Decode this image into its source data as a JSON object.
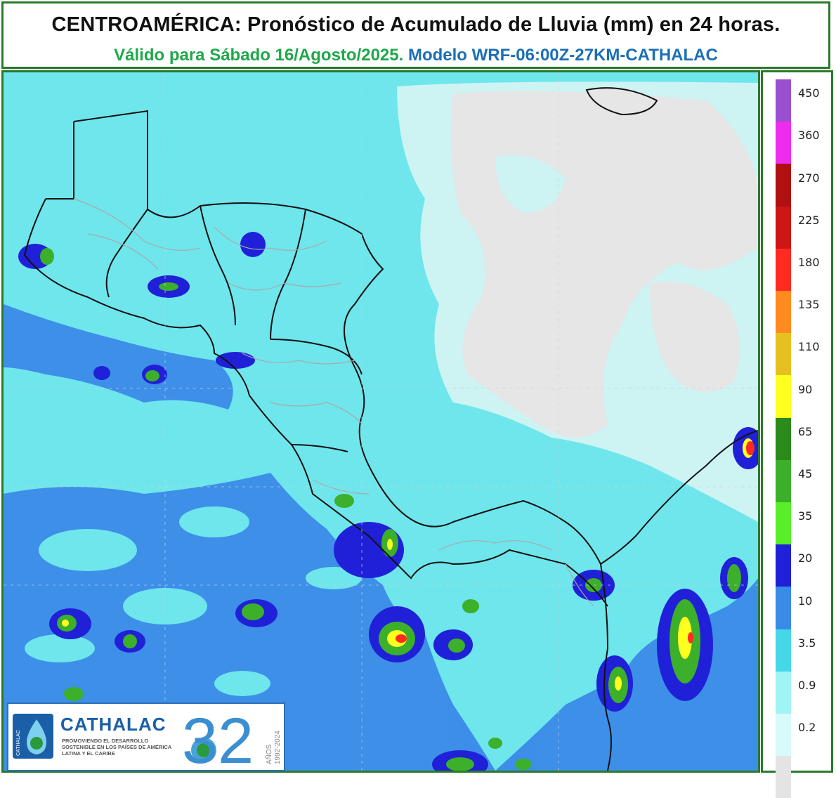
{
  "header": {
    "title": "CENTROAMÉRICA: Pronóstico de Acumulado de Lluvia (mm) en 24 horas.",
    "validity": "Válido para Sábado 16/Agosto/2025.",
    "model": "Modelo WRF-06:00Z-27KM-CATHALAC"
  },
  "legend": {
    "ticks": [
      "450",
      "360",
      "270",
      "225",
      "180",
      "135",
      "110",
      "90",
      "65",
      "45",
      "35",
      "20",
      "10",
      "3.5",
      "0.9",
      "0.2"
    ],
    "colors": [
      "#9a4fcf",
      "#ee2cee",
      "#b01010",
      "#cc1515",
      "#ff2a20",
      "#ff8a20",
      "#e6c020",
      "#ffff20",
      "#2a8a1a",
      "#3cb02a",
      "#58ef2a",
      "#2020d8",
      "#3a8ae8",
      "#44d8e8",
      "#a0f4f4",
      "#d8fafa",
      "#e4e4e4"
    ]
  },
  "logo": {
    "name": "CATHALAC",
    "tagline": "PROMOVIENDO EL DESARROLLO SOSTENIBLE EN LOS PAÍSES DE AMÉRICA LATINA Y EL CARIBE",
    "number": "32",
    "years_label": "AÑOS",
    "years": "1992-2024",
    "side_text": "CATHALAC"
  }
}
